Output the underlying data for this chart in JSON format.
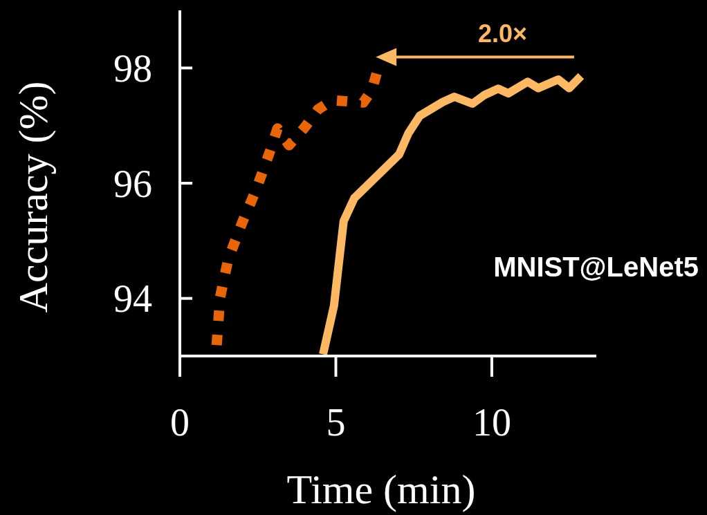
{
  "chart_data": {
    "type": "line",
    "xlabel": "Time (min)",
    "ylabel": "Accuracy (%)",
    "xlim": [
      0,
      13.35
    ],
    "xticks": [
      0,
      5,
      10
    ],
    "ylim": [
      93,
      99
    ],
    "yticks": [
      94,
      96,
      98
    ],
    "grid": false,
    "marker": "none",
    "annotations": [
      "2.0×",
      "MNIST@LeNet5"
    ],
    "series": [
      {
        "color": "#e8650a",
        "line_style": "dotted",
        "x": [
          1.18,
          1.29,
          1.55,
          2.0,
          2.44,
          2.88,
          3.13,
          3.5,
          3.99,
          4.43,
          4.88,
          5.88,
          6.16,
          6.39
        ],
        "values": [
          93.19,
          94.02,
          94.68,
          95.32,
          95.88,
          96.54,
          96.95,
          96.66,
          96.96,
          97.28,
          97.44,
          97.4,
          97.62,
          98.07
        ]
      },
      {
        "color": "#fdb863",
        "line_style": "solid",
        "x": [
          4.59,
          4.94,
          5.25,
          5.59,
          7.03,
          7.32,
          7.69,
          8.43,
          8.8,
          9.38,
          9.76,
          10.2,
          10.53,
          11.15,
          11.49,
          12.13,
          12.48,
          12.86
        ],
        "values": [
          93.03,
          93.87,
          95.34,
          95.74,
          96.5,
          96.86,
          97.17,
          97.41,
          97.5,
          97.38,
          97.53,
          97.64,
          97.56,
          97.76,
          97.65,
          97.8,
          97.65,
          97.86
        ]
      }
    ]
  }
}
